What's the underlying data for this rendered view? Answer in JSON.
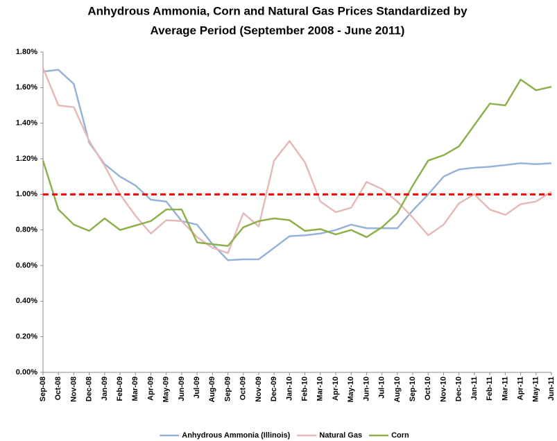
{
  "chart_data": {
    "type": "line",
    "title": [
      "Anhydrous Ammonia, Corn and Natural Gas Prices Standardized by",
      "Average Period (September 2008 - June 2011)"
    ],
    "categories": [
      "Sep-08",
      "Oct-08",
      "Nov-08",
      "Dec-08",
      "Jan-09",
      "Feb-09",
      "Mar-09",
      "Apr-09",
      "May-09",
      "Jun-09",
      "Jul-09",
      "Aug-09",
      "Sep-09",
      "Oct-09",
      "Nov-09",
      "Dec-09",
      "Jan-10",
      "Feb-10",
      "Mar-10",
      "Apr-10",
      "May-10",
      "Jun-10",
      "Jul-10",
      "Aug-10",
      "Sep-10",
      "Oct-10",
      "Nov-10",
      "Dec-10",
      "Jan-11",
      "Feb-11",
      "Mar-11",
      "Apr-11",
      "May-11",
      "Jun-11"
    ],
    "series": [
      {
        "name": "Anhydrous Ammonia (Illinois)",
        "color": "#95b3d7",
        "values": [
          1.69,
          1.7,
          1.62,
          1.29,
          1.17,
          1.1,
          1.05,
          0.97,
          0.96,
          0.85,
          0.83,
          0.72,
          0.63,
          0.635,
          0.635,
          0.7,
          0.765,
          0.77,
          0.78,
          0.8,
          0.83,
          0.81,
          0.81,
          0.81,
          0.91,
          1.0,
          1.1,
          1.14,
          1.15,
          1.155,
          1.165,
          1.175,
          1.17,
          1.175
        ]
      },
      {
        "name": "Natural Gas",
        "color": "#e6b9b8",
        "values": [
          1.71,
          1.5,
          1.49,
          1.3,
          1.16,
          1.0,
          0.88,
          0.78,
          0.855,
          0.85,
          0.76,
          0.7,
          0.67,
          0.895,
          0.82,
          1.19,
          1.3,
          1.18,
          0.96,
          0.9,
          0.925,
          1.07,
          1.03,
          0.96,
          0.87,
          0.77,
          0.83,
          0.95,
          1.0,
          0.915,
          0.885,
          0.945,
          0.96,
          1.015
        ]
      },
      {
        "name": "Corn",
        "color": "#8db04a",
        "values": [
          1.19,
          0.915,
          0.83,
          0.795,
          0.865,
          0.8,
          0.825,
          0.85,
          0.915,
          0.915,
          0.73,
          0.72,
          0.71,
          0.815,
          0.85,
          0.865,
          0.855,
          0.795,
          0.805,
          0.775,
          0.8,
          0.76,
          0.815,
          0.895,
          1.05,
          1.19,
          1.22,
          1.27,
          1.39,
          1.51,
          1.5,
          1.645,
          1.585,
          1.605
        ]
      }
    ],
    "reference_line": {
      "value": 1.0,
      "color": "#ff0000"
    },
    "ylim": [
      0,
      1.8
    ],
    "yticks": [
      {
        "value": 0,
        "label": "0.00%"
      },
      {
        "value": 0.2,
        "label": "0.20%"
      },
      {
        "value": 0.4,
        "label": "0.40%"
      },
      {
        "value": 0.6,
        "label": "0.60%"
      },
      {
        "value": 0.8,
        "label": "0.80%"
      },
      {
        "value": 1.0,
        "label": "1.00%"
      },
      {
        "value": 1.2,
        "label": "1.20%"
      },
      {
        "value": 1.4,
        "label": "1.40%"
      },
      {
        "value": 1.6,
        "label": "1.60%"
      },
      {
        "value": 1.8,
        "label": "1.80%"
      }
    ],
    "grid": false,
    "legend": "bottom"
  }
}
